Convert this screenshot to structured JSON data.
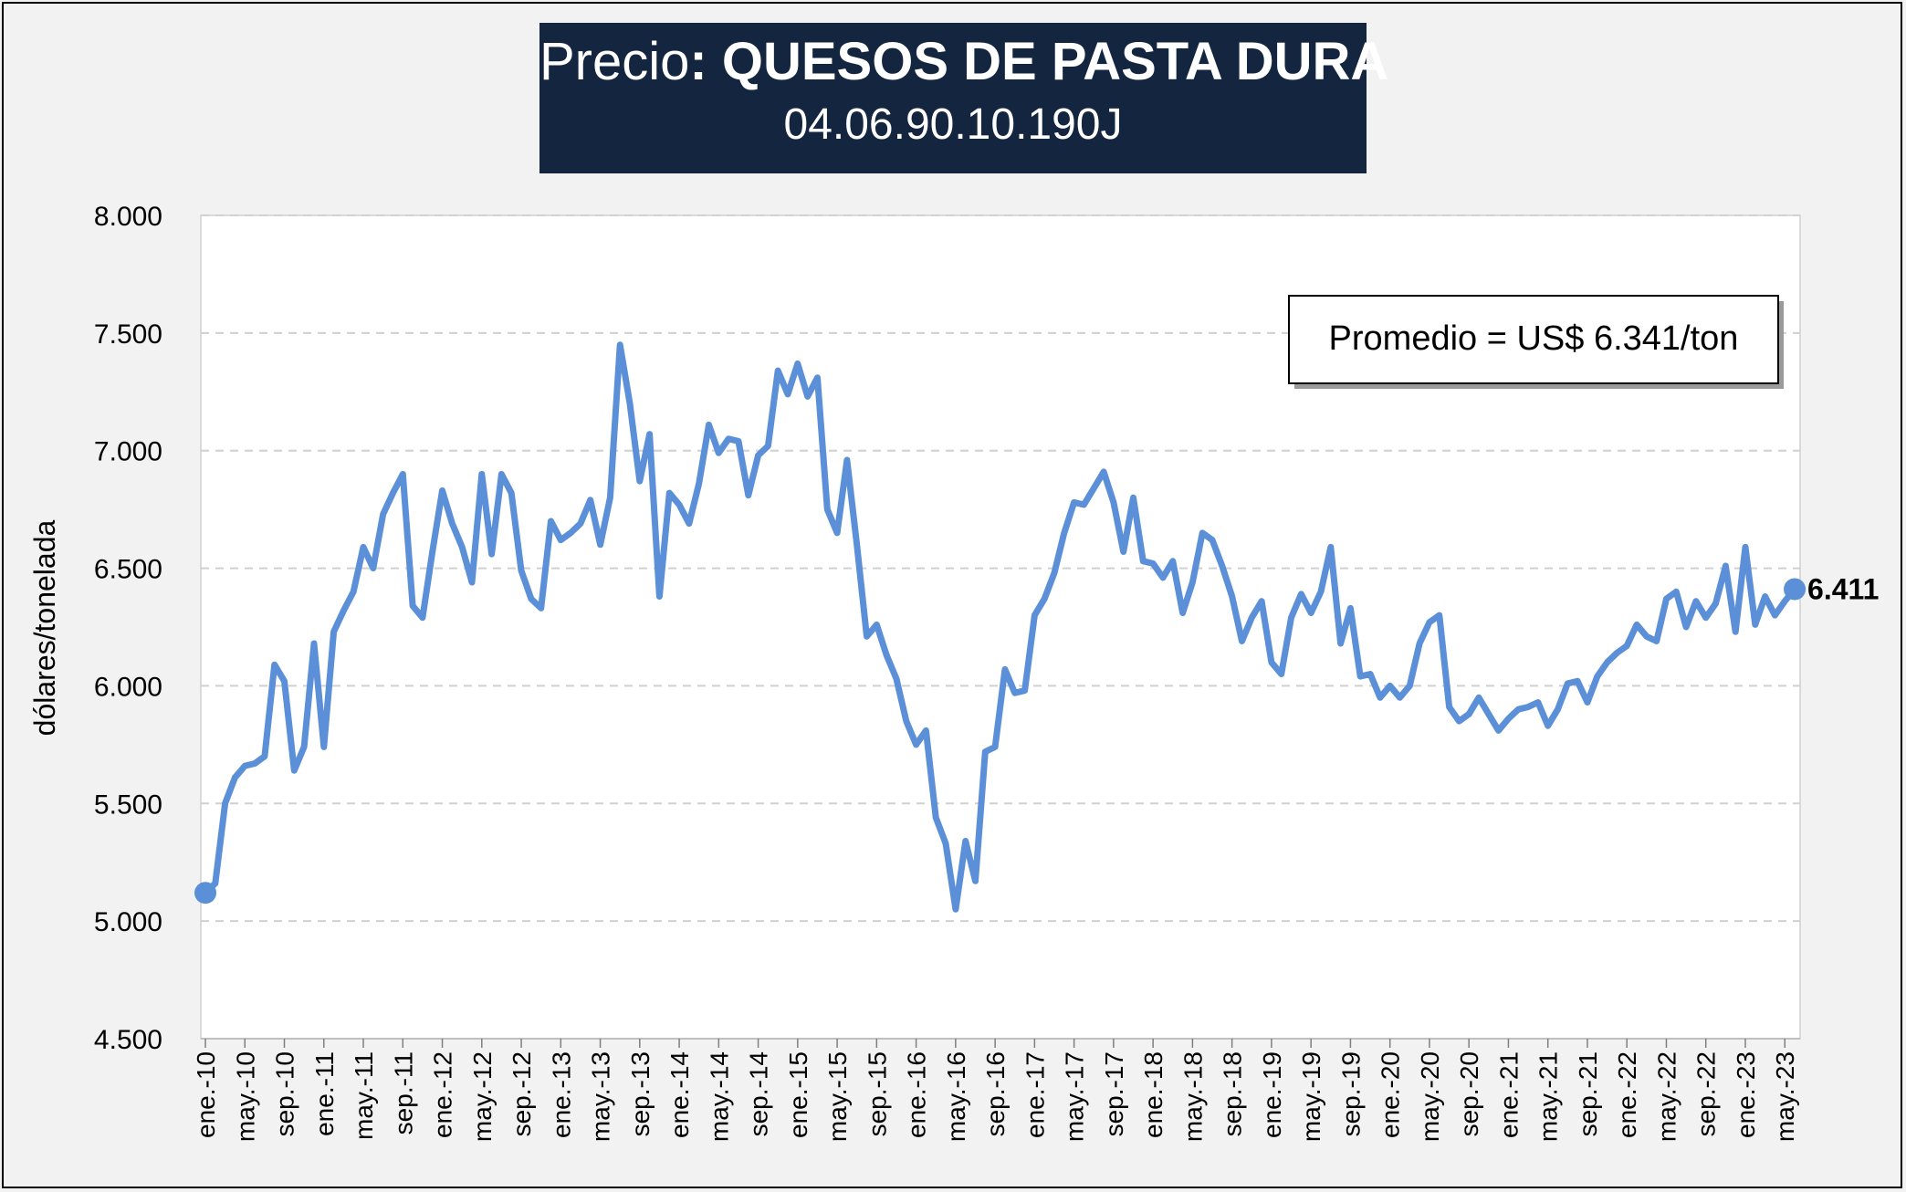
{
  "title": {
    "prefix": "Precio",
    "separator": ": ",
    "product": "QUESOS DE PASTA DURA",
    "code": "04.06.90.10.190J"
  },
  "annotation": {
    "average_label": "Promedio = US$ 6.341/ton",
    "last_value_label": "6.411"
  },
  "colors": {
    "series": "#5b8fd8",
    "title_bg": "#14253f",
    "plot_bg": "#ffffff",
    "page_bg": "#f2f2f2",
    "grid": "#d0d0d0"
  },
  "chart_data": {
    "type": "line",
    "title": "Precio: QUESOS DE PASTA DURA",
    "subtitle": "04.06.90.10.190J",
    "xlabel": "",
    "ylabel": "dólares/tonelada",
    "ylim": [
      4500,
      8000
    ],
    "yticks": [
      4500,
      5000,
      5500,
      6000,
      6500,
      7000,
      7500,
      8000
    ],
    "ytick_labels": [
      "4.500",
      "5.000",
      "5.500",
      "6.000",
      "6.500",
      "7.000",
      "7.500",
      "8.000"
    ],
    "xtick_labels": [
      "ene.-10",
      "may.-10",
      "sep.-10",
      "ene.-11",
      "may.-11",
      "sep.-11",
      "ene.-12",
      "may.-12",
      "sep.-12",
      "ene.-13",
      "may.-13",
      "sep.-13",
      "ene.-14",
      "may.-14",
      "sep.-14",
      "ene.-15",
      "may.-15",
      "sep.-15",
      "ene.-16",
      "may.-16",
      "sep.-16",
      "ene.-17",
      "may.-17",
      "sep.-17",
      "ene.-18",
      "may.-18",
      "sep.-18",
      "ene.-19",
      "may.-19",
      "sep.-19",
      "ene.-20",
      "may.-20",
      "sep.-20",
      "ene.-21",
      "may.-21",
      "sep.-21",
      "ene.-22",
      "may.-22",
      "sep.-22",
      "ene.-23",
      "may.-23"
    ],
    "xtick_step_months": 4,
    "grid": true,
    "grid_style": "dashed horizontal",
    "series": [
      {
        "start": "ene.-10",
        "frequency": "monthly",
        "values": [
          5120,
          5160,
          5500,
          5610,
          5660,
          5670,
          5700,
          6090,
          6020,
          5640,
          5740,
          6180,
          5740,
          6230,
          6320,
          6400,
          6590,
          6500,
          6730,
          6820,
          6900,
          6340,
          6290,
          6570,
          6830,
          6690,
          6590,
          6440,
          6900,
          6560,
          6900,
          6820,
          6490,
          6370,
          6330,
          6700,
          6620,
          6650,
          6690,
          6790,
          6600,
          6800,
          7450,
          7200,
          6870,
          7070,
          6380,
          6820,
          6770,
          6690,
          6860,
          7110,
          6990,
          7050,
          7040,
          6810,
          6980,
          7020,
          7340,
          7240,
          7370,
          7230,
          7310,
          6750,
          6650,
          6960,
          6600,
          6210,
          6260,
          6130,
          6030,
          5850,
          5750,
          5810,
          5440,
          5330,
          5050,
          5340,
          5170,
          5720,
          5740,
          6070,
          5970,
          5980,
          6300,
          6370,
          6480,
          6650,
          6780,
          6770,
          6840,
          6910,
          6780,
          6570,
          6800,
          6530,
          6520,
          6460,
          6530,
          6310,
          6440,
          6650,
          6620,
          6510,
          6380,
          6190,
          6290,
          6360,
          6100,
          6050,
          6290,
          6390,
          6310,
          6400,
          6590,
          6180,
          6330,
          6040,
          6050,
          5950,
          6000,
          5950,
          6000,
          6180,
          6270,
          6300,
          5910,
          5850,
          5880,
          5950,
          5880,
          5810,
          5860,
          5900,
          5910,
          5930,
          5830,
          5900,
          6010,
          6020,
          5930,
          6040,
          6100,
          6140,
          6170,
          6260,
          6210,
          6190,
          6370,
          6400,
          6250,
          6360,
          6290,
          6350,
          6510,
          6230,
          6590,
          6260,
          6380,
          6300,
          6360,
          6411
        ]
      }
    ],
    "annotations": [
      "Promedio = US$ 6.341/ton",
      "6.411"
    ]
  }
}
